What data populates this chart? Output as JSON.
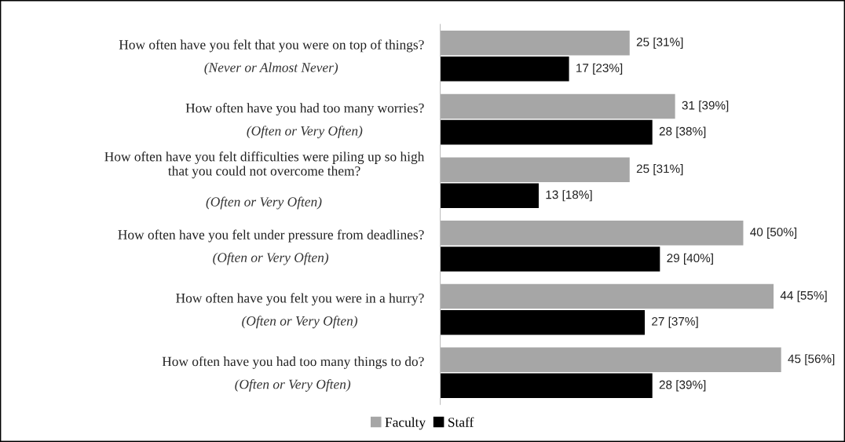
{
  "chart_data": {
    "type": "bar",
    "orientation": "horizontal",
    "categories": [
      "How often have you felt that you were on top of things?\n(Never or Almost Never)",
      "How often have you had too many worries?\n(Often or Very Often)",
      "How often have you felt difficulties were piling up so high\nthat you could not overcome them?\n(Often or Very Often)",
      "How often have you felt under pressure from deadlines?\n(Often or Very Often)",
      "How often have you felt you were in a hurry?\n(Often or Very Often)",
      "How often have you had too many things to do?\n(Often or Very Often)"
    ],
    "series": [
      {
        "name": "Faculty",
        "color": "#a6a6a6",
        "values": [
          25,
          31,
          25,
          40,
          44,
          45
        ],
        "value_labels": [
          "25 [31%]",
          "31 [39%]",
          "25 [31%]",
          "40 [50%]",
          "44 [55%]",
          "45 [56%]"
        ]
      },
      {
        "name": "Staff",
        "color": "#000000",
        "values": [
          17,
          28,
          13,
          29,
          27,
          28
        ],
        "value_labels": [
          "17 [23%]",
          "28 [38%]",
          "13 [18%]",
          "29 [40%]",
          "27 [37%]",
          "28 [39%]"
        ]
      }
    ],
    "legend": "bottom"
  }
}
